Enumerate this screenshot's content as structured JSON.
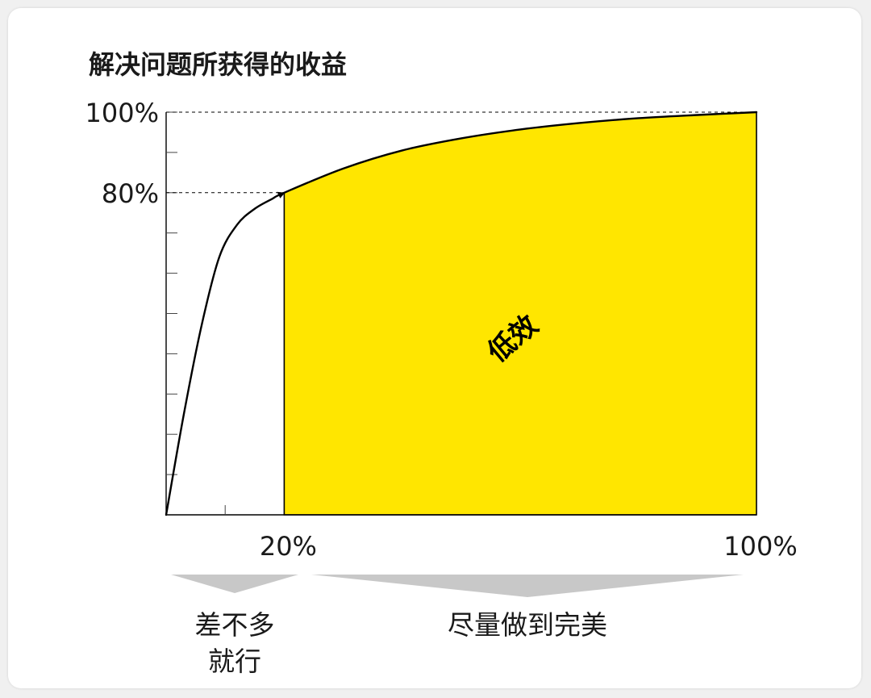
{
  "chart_data": {
    "type": "area",
    "title": "解决问题所获得的收益",
    "x": [
      0,
      3,
      6,
      9,
      12,
      15,
      18,
      20,
      30,
      40,
      50,
      60,
      70,
      80,
      90,
      100
    ],
    "y": [
      0,
      25,
      47,
      64,
      72,
      76,
      78.5,
      80,
      86,
      90.5,
      93.5,
      95.7,
      97.3,
      98.5,
      99.3,
      100
    ],
    "xlim": [
      0,
      100
    ],
    "ylim": [
      0,
      100
    ],
    "y_ticks": [
      0,
      10,
      20,
      30,
      40,
      50,
      60,
      70,
      80,
      90,
      100
    ],
    "y_tick_labels": [
      {
        "value": 80,
        "label": "80%"
      },
      {
        "value": 100,
        "label": "100%"
      }
    ],
    "x_tick_labels": [
      {
        "value": 20,
        "label": "20%"
      },
      {
        "value": 100,
        "label": "100%"
      }
    ],
    "x_minor_ticks": [
      10
    ],
    "reference_lines": [
      {
        "axis": "y",
        "value": 80,
        "x_to": 20,
        "style": "dashed"
      },
      {
        "axis": "y",
        "value": 100,
        "x_to": 100,
        "style": "dashed"
      }
    ],
    "shaded_region": {
      "x_from": 20,
      "x_to": 100,
      "color": "#ffe600",
      "label": "低效"
    },
    "segments": [
      {
        "x_from": 0,
        "x_to": 20,
        "label_lines": [
          "差不多",
          "就行"
        ]
      },
      {
        "x_from": 20,
        "x_to": 100,
        "label_lines": [
          "尽量做到完美"
        ]
      }
    ],
    "grid": false,
    "colors": {
      "fill": "#ffe600",
      "line": "#000000",
      "text": "#1a1a1a",
      "arrows": "#c8c8c8"
    }
  }
}
